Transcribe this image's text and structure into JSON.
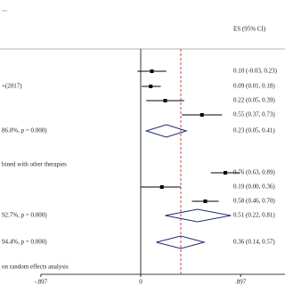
{
  "chart_data": {
    "type": "forest",
    "column_title": "ES (95% CI)",
    "xlim": [
      -1.264,
      1.296
    ],
    "xticks": [
      {
        "value": -0.897,
        "label": "-.897"
      },
      0,
      {
        "value": 0.897,
        "label": ".897"
      }
    ],
    "point_color": "#000000",
    "diamond_color": "#1f2a6e",
    "overall_line_color": "#c0392b",
    "overall_row": 10,
    "rows": [
      {
        "shape": "point",
        "es": 0.1,
        "lo": -0.03,
        "hi": 0.23,
        "value_label": "0.10 (-0.03, 0.23)"
      },
      {
        "label": "+(2017)",
        "shape": "point",
        "es": 0.09,
        "lo": 0.01,
        "hi": 0.18,
        "value_label": "0.09 (0.01, 0.18)"
      },
      {
        "shape": "point",
        "es": 0.22,
        "lo": 0.05,
        "hi": 0.39,
        "value_label": "0.22 (0.05, 0.39)"
      },
      {
        "shape": "point",
        "es": 0.55,
        "lo": 0.37,
        "hi": 0.73,
        "value_label": "0.55 (0.37, 0.73)"
      },
      {
        "label": "86.0%, p = 0.000)",
        "shape": "diamond",
        "es": 0.23,
        "lo": 0.05,
        "hi": 0.41,
        "value_label": "0.23 (0.05, 0.41)"
      },
      {
        "label": "bined with other therapies"
      },
      {
        "shape": "point",
        "es": 0.76,
        "lo": 0.63,
        "hi": 0.89,
        "value_label": "0.76 (0.63, 0.89)"
      },
      {
        "shape": "point",
        "es": 0.19,
        "lo": 0.0,
        "hi": 0.36,
        "value_label": "0.19 (0.00, 0.36)"
      },
      {
        "shape": "point",
        "es": 0.58,
        "lo": 0.46,
        "hi": 0.7,
        "value_label": "0.58 (0.46, 0.70)"
      },
      {
        "label": "92.7%, p = 0.000)",
        "shape": "diamond",
        "es": 0.51,
        "lo": 0.22,
        "hi": 0.81,
        "value_label": "0.51 (0.22, 0.81)"
      },
      {
        "label": "94.4%, p = 0.000)",
        "shape": "diamond",
        "es": 0.36,
        "lo": 0.14,
        "hi": 0.57,
        "value_label": "0.36 (0.14, 0.57)"
      },
      {
        "label": "on random effects analysis"
      }
    ]
  }
}
